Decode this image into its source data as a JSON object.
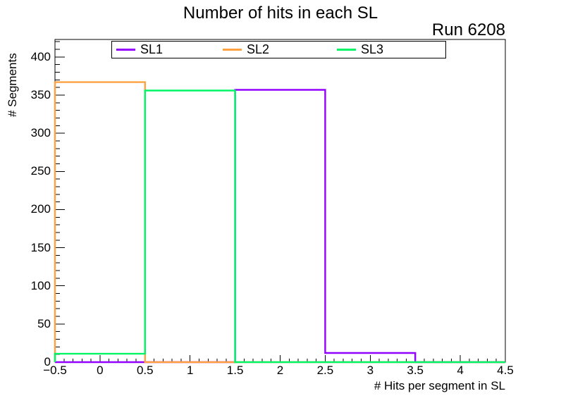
{
  "chart_data": {
    "type": "bar",
    "style": "unfilled-step-histogram-outline",
    "title": "Number of hits in each SL",
    "annotation": "Run 6208",
    "xlabel": "# Hits per segment in SL",
    "ylabel": "# Segments",
    "bin_edges": [
      -0.5,
      0.5,
      1.5,
      2.5,
      3.5,
      4.5
    ],
    "series": [
      {
        "name": "SL1",
        "color": "#9400ff",
        "values": [
          0,
          0,
          357,
          12,
          0
        ]
      },
      {
        "name": "SL2",
        "color": "#ffa041",
        "values": [
          367,
          0,
          0,
          0,
          0
        ]
      },
      {
        "name": "SL3",
        "color": "#00f566",
        "values": [
          11,
          356,
          0,
          0,
          0
        ]
      }
    ],
    "xlim": [
      -0.5,
      4.5
    ],
    "ylim": [
      0,
      423
    ],
    "x_major_ticks": [
      -0.5,
      0,
      0.5,
      1,
      1.5,
      2,
      2.5,
      3,
      3.5,
      4,
      4.5
    ],
    "x_tick_labels": [
      "−0.5",
      "0",
      "0.5",
      "1",
      "1.5",
      "2",
      "2.5",
      "3",
      "3.5",
      "4",
      "4.5"
    ],
    "x_minor_step": 0.1,
    "y_major_ticks": [
      0,
      50,
      100,
      150,
      200,
      250,
      300,
      350,
      400
    ],
    "y_tick_labels": [
      "0",
      "50",
      "100",
      "150",
      "200",
      "250",
      "300",
      "350",
      "400"
    ],
    "y_minor_step": 10,
    "grid": false,
    "legend_position": "top-center",
    "frame_color": "#000000",
    "background_color": "#ffffff"
  }
}
